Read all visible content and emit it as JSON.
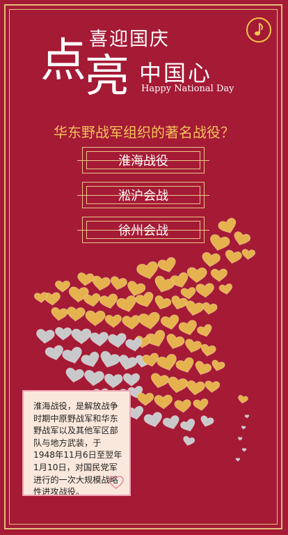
{
  "header": {
    "title_small": "喜迎国庆",
    "title_char_1": "点",
    "title_char_2": "亮",
    "title_rest": "中国心",
    "subtitle_en": "Happy National Day"
  },
  "music": {
    "icon": "music-note-icon"
  },
  "quiz": {
    "question": "华东野战军组织的著名战役？",
    "options": [
      {
        "label": "淮海战役"
      },
      {
        "label": "淞沪会战"
      },
      {
        "label": "徐州会战"
      }
    ]
  },
  "info_card": {
    "text": "淮海战役，是解放战争时期中原野战军和华东野战军以及其他军区部队与地方武装，于1948年11月6日至翌年1月10日，对国民党军进行的一次大规模战略性进攻战役。",
    "icon": "heart-outline-icon"
  },
  "colors": {
    "background": "#a51a35",
    "gold": "#e3bf7d",
    "heart_gold": "#e6b24e",
    "heart_gray": "#c9c9cb"
  }
}
